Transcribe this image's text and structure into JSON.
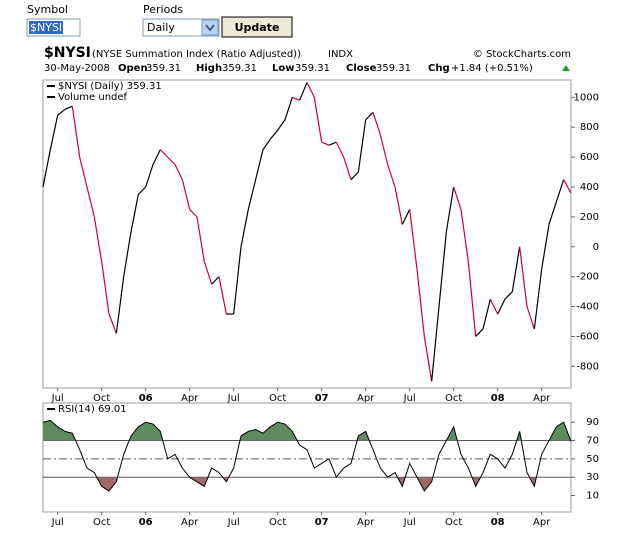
{
  "form": {
    "symbol_label": "Symbol",
    "symbol_value": "$NYSI",
    "periods_label": "Periods",
    "periods_value": "Daily",
    "button": "Update"
  },
  "header": {
    "symbol": "$NYSI",
    "name": "(NYSE Summation Index (Ratio Adjusted))",
    "exchange": "INDX",
    "credit": "© StockCharts.com",
    "date": "30-May-2008",
    "open_label": "Open",
    "open": "359.31",
    "high_label": "High",
    "high": "359.31",
    "low_label": "Low",
    "low": "359.31",
    "close_label": "Close",
    "close": "359.31",
    "chg_label": "Chg",
    "chg": "+1.84 (+0.51%)"
  },
  "chart_data": [
    {
      "type": "line",
      "legend": [
        "$NYSI (Daily) 359.31",
        "Volume undef"
      ],
      "color": "#000000",
      "down_color": "#cc0033",
      "categories": [
        null,
        null,
        "Jul",
        null,
        null,
        null,
        null,
        null,
        "Oct",
        null,
        null,
        null,
        null,
        null,
        "06",
        null,
        null,
        null,
        null,
        null,
        "Apr",
        null,
        null,
        null,
        null,
        null,
        "Jul",
        null,
        null,
        null,
        null,
        null,
        "Oct",
        null,
        null,
        null,
        null,
        null,
        "07",
        null,
        null,
        null,
        null,
        null,
        "Apr",
        null,
        null,
        null,
        null,
        null,
        "Jul",
        null,
        null,
        null,
        null,
        null,
        "Oct",
        null,
        null,
        null,
        null,
        null,
        "08",
        null,
        null,
        null,
        null,
        null,
        "Apr",
        null,
        null,
        null,
        null
      ],
      "values": [
        400,
        650,
        880,
        920,
        940,
        600,
        400,
        200,
        -100,
        -450,
        -580,
        -200,
        100,
        350,
        400,
        550,
        650,
        600,
        550,
        450,
        250,
        200,
        -100,
        -250,
        -200,
        -450,
        -450,
        0,
        250,
        450,
        650,
        720,
        780,
        850,
        1000,
        980,
        1100,
        1000,
        700,
        680,
        700,
        600,
        450,
        500,
        850,
        900,
        750,
        550,
        400,
        150,
        250,
        -150,
        -600,
        -900,
        -400,
        100,
        400,
        250,
        -100,
        -600,
        -550,
        -350,
        -450,
        -350,
        -300,
        0,
        -400,
        -550,
        -150,
        150,
        300,
        450,
        359.31
      ],
      "ylim": [
        -945,
        1116
      ],
      "yticks": [
        -800,
        -600,
        -400,
        -200,
        0,
        200,
        400,
        600,
        800,
        1000
      ]
    },
    {
      "type": "rsi",
      "legend": [
        "RSI(14) 69.01"
      ],
      "color": "#000000",
      "fill_above": "#5e8c5e",
      "fill_below": "#a06a6a",
      "categories": [
        null,
        null,
        "Jul",
        null,
        null,
        null,
        null,
        null,
        "Oct",
        null,
        null,
        null,
        null,
        null,
        "06",
        null,
        null,
        null,
        null,
        null,
        "Apr",
        null,
        null,
        null,
        null,
        null,
        "Jul",
        null,
        null,
        null,
        null,
        null,
        "Oct",
        null,
        null,
        null,
        null,
        null,
        "07",
        null,
        null,
        null,
        null,
        null,
        "Apr",
        null,
        null,
        null,
        null,
        null,
        "Jul",
        null,
        null,
        null,
        null,
        null,
        "Oct",
        null,
        null,
        null,
        null,
        null,
        "08",
        null,
        null,
        null,
        null,
        null,
        "Apr",
        null,
        null,
        null,
        null
      ],
      "values": [
        90,
        92,
        85,
        80,
        78,
        60,
        40,
        35,
        20,
        15,
        25,
        55,
        75,
        85,
        90,
        88,
        80,
        50,
        55,
        40,
        30,
        25,
        20,
        40,
        35,
        25,
        40,
        75,
        80,
        82,
        78,
        85,
        90,
        88,
        80,
        65,
        60,
        40,
        45,
        50,
        30,
        40,
        45,
        75,
        80,
        60,
        40,
        30,
        35,
        20,
        45,
        30,
        15,
        25,
        55,
        70,
        85,
        55,
        40,
        20,
        35,
        55,
        50,
        40,
        55,
        80,
        35,
        20,
        55,
        70,
        85,
        90,
        69.01
      ],
      "ylim": [
        -8,
        111
      ],
      "yticks": [
        10,
        30,
        50,
        70,
        90
      ]
    }
  ]
}
